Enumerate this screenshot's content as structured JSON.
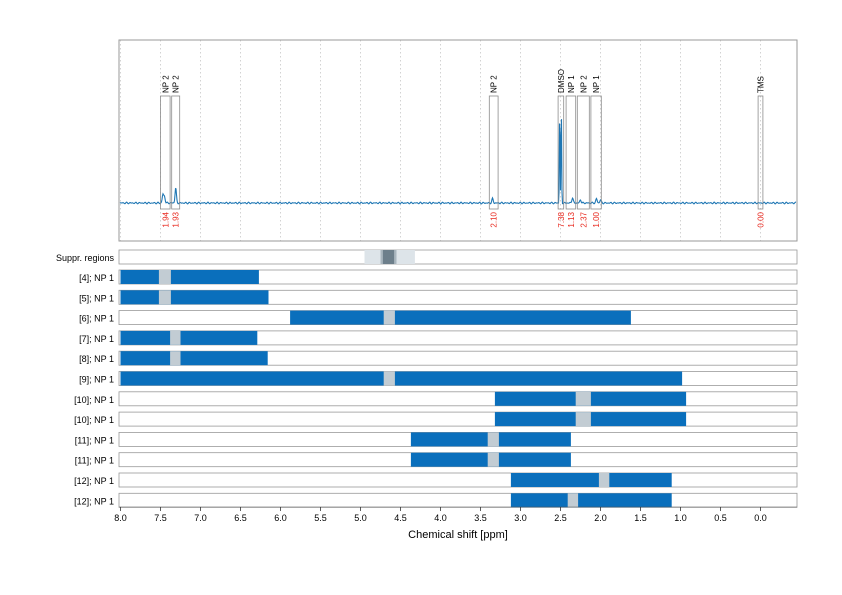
{
  "chart_data": {
    "type": "nmr-spectrum-with-range-tracks",
    "xlabel": "Chemical shift [ppm]",
    "xlim": [
      8.0,
      -0.45
    ],
    "x_ticks": [
      8.0,
      7.5,
      7.0,
      6.5,
      6.0,
      5.5,
      5.0,
      4.5,
      4.0,
      3.5,
      3.0,
      2.5,
      2.0,
      1.5,
      1.0,
      0.5,
      0.0
    ],
    "x_tick_labels": [
      "8.0",
      "7.5",
      "7.0",
      "6.5",
      "6.0",
      "5.5",
      "5.0",
      "4.5",
      "4.0",
      "3.5",
      "3.0",
      "2.5",
      "2.0",
      "1.5",
      "1.0",
      "0.5",
      "0.0"
    ],
    "grid": "vertical dotted",
    "colors": {
      "spectrum": "#1f77b4",
      "bar": "#0a6fbc",
      "suppressed": "#c2ccd3",
      "integral": "#e8281e",
      "frame": "#9a9a9a"
    },
    "peaks": [
      {
        "x": 7.47,
        "y": 0.08
      },
      {
        "x": 7.45,
        "y": 0.06
      },
      {
        "x": 7.31,
        "y": 0.14
      },
      {
        "x": 3.35,
        "y": 0.04
      },
      {
        "x": 2.51,
        "y": 0.88
      },
      {
        "x": 2.49,
        "y": 0.92
      },
      {
        "x": 2.35,
        "y": 0.05
      },
      {
        "x": 2.25,
        "y": 0.03
      },
      {
        "x": 2.05,
        "y": 0.04
      },
      {
        "x": 2.0,
        "y": 0.03
      }
    ],
    "annotations": [
      {
        "label": "NP 2",
        "x_from": 7.5,
        "x_to": 7.38,
        "integral": "1.94"
      },
      {
        "label": "NP 2",
        "x_from": 7.36,
        "x_to": 7.26,
        "integral": "1.93"
      },
      {
        "label": "NP 2",
        "x_from": 3.39,
        "x_to": 3.28,
        "integral": "2.10"
      },
      {
        "label": "DMSO",
        "x_from": 2.53,
        "x_to": 2.46,
        "integral": "7.38"
      },
      {
        "label": "NP 1",
        "x_from": 2.43,
        "x_to": 2.31,
        "integral": "1.13"
      },
      {
        "label": "NP 2",
        "x_from": 2.29,
        "x_to": 2.14,
        "integral": "2.37"
      },
      {
        "label": "NP 1",
        "x_from": 2.12,
        "x_to": 1.99,
        "integral": "1.00"
      },
      {
        "label": "TMS",
        "x_from": 0.03,
        "x_to": -0.03,
        "integral": "0.00"
      }
    ],
    "suppressed_region": {
      "label": "Suppr. regions",
      "outer": [
        4.95,
        4.32
      ],
      "mid": [
        4.75,
        4.55
      ],
      "core": [
        4.72,
        4.58
      ]
    },
    "tracks": [
      {
        "label": "[4]; NP 1",
        "from": 8.0,
        "to": 6.27,
        "gap": [
          7.52,
          7.37
        ]
      },
      {
        "label": "[5]; NP 1",
        "from": 8.0,
        "to": 6.15,
        "gap": [
          7.52,
          7.37
        ]
      },
      {
        "label": "[6]; NP 1",
        "from": 5.88,
        "to": 1.62,
        "gap": [
          4.71,
          4.57
        ]
      },
      {
        "label": "[7]; NP 1",
        "from": 8.0,
        "to": 6.29,
        "gap": [
          7.38,
          7.25
        ]
      },
      {
        "label": "[8]; NP 1",
        "from": 8.0,
        "to": 6.16,
        "gap": [
          7.38,
          7.25
        ]
      },
      {
        "label": "[9]; NP 1",
        "from": 8.0,
        "to": 0.98,
        "gap": [
          4.71,
          4.57
        ]
      },
      {
        "label": "[10]; NP 1",
        "from": 3.32,
        "to": 0.93,
        "gap": [
          2.31,
          2.12
        ]
      },
      {
        "label": "[10]; NP 1",
        "from": 3.32,
        "to": 0.93,
        "gap": [
          2.31,
          2.12
        ]
      },
      {
        "label": "[11]; NP 1",
        "from": 4.37,
        "to": 2.37,
        "gap": [
          3.41,
          3.27
        ]
      },
      {
        "label": "[11]; NP 1",
        "from": 4.37,
        "to": 2.37,
        "gap": [
          3.41,
          3.27
        ]
      },
      {
        "label": "[12]; NP 1",
        "from": 3.12,
        "to": 1.11,
        "gap": [
          2.02,
          1.89
        ]
      },
      {
        "label": "[12]; NP 1",
        "from": 3.12,
        "to": 1.11,
        "gap": [
          2.41,
          2.28
        ]
      }
    ]
  }
}
